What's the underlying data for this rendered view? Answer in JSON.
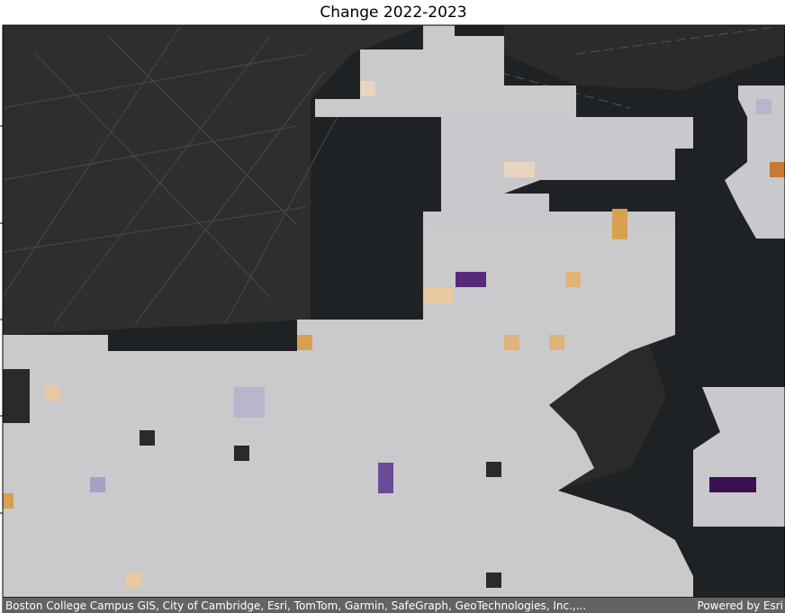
{
  "title": "Change 2022-2023",
  "attribution": {
    "sources": "Boston College Campus GIS, City of Cambridge, Esri, TomTom, Garmin, SafeGraph, GeoTechnologies, Inc.,...",
    "powered_by": "Powered by Esri"
  }
}
